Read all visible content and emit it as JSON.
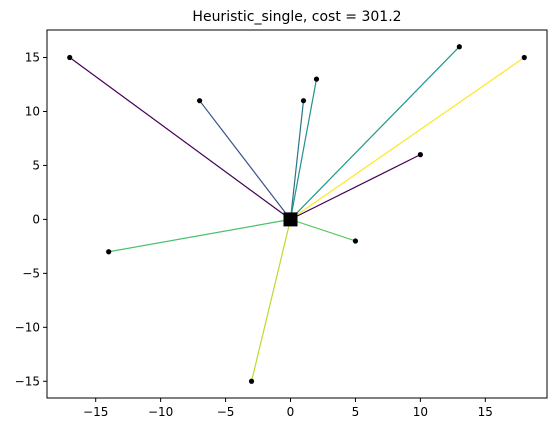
{
  "chart_data": {
    "type": "scatter",
    "title": "Heuristic_single, cost = 301.2",
    "xlabel": "",
    "ylabel": "",
    "xlim": [
      -18.75,
      19.75
    ],
    "ylim": [
      -16.55,
      17.55
    ],
    "xticks": [
      -15,
      -10,
      -5,
      0,
      5,
      10,
      15
    ],
    "yticks": [
      -15,
      -10,
      -5,
      0,
      5,
      10,
      15
    ],
    "xtick_labels": [
      "−15",
      "−10",
      "−5",
      "0",
      "5",
      "10",
      "15"
    ],
    "ytick_labels": [
      "−15",
      "−10",
      "−5",
      "0",
      "5",
      "10",
      "15"
    ],
    "grid": false,
    "center": {
      "x": 0,
      "y": 0,
      "marker": "square",
      "color": "#000000"
    },
    "points": [
      {
        "x": -17,
        "y": 15,
        "line_color": "#440154"
      },
      {
        "x": -7,
        "y": 11,
        "line_color": "#3b528b"
      },
      {
        "x": 1,
        "y": 11,
        "line_color": "#2c728e"
      },
      {
        "x": 2,
        "y": 13,
        "line_color": "#21918c"
      },
      {
        "x": 13,
        "y": 16,
        "line_color": "#1f988b"
      },
      {
        "x": 18,
        "y": 15,
        "line_color": "#fde725"
      },
      {
        "x": 10,
        "y": 6,
        "line_color": "#440154"
      },
      {
        "x": 5,
        "y": -2,
        "line_color": "#5ec962"
      },
      {
        "x": -14,
        "y": -3,
        "line_color": "#4ac16d"
      },
      {
        "x": -3,
        "y": -15,
        "line_color": "#b5de2b"
      }
    ]
  }
}
